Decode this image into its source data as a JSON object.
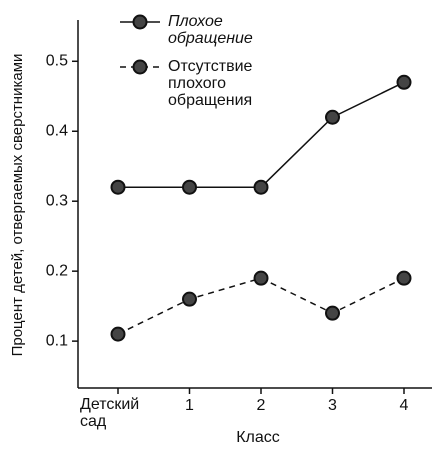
{
  "chart_data": {
    "type": "line",
    "x_label": "Класс",
    "y_label": "Процент детей, отвергаемых сверстниками",
    "categories": [
      "Детский сад",
      "1",
      "2",
      "3",
      "4"
    ],
    "series": [
      {
        "name": "Плохое обращение",
        "color": "#111111",
        "line_style": "solid",
        "values": [
          0.32,
          0.32,
          0.32,
          0.42,
          0.47
        ]
      },
      {
        "name": "Отсутствие плохого обращения",
        "color": "#111111",
        "line_style": "dashed",
        "values": [
          0.11,
          0.16,
          0.19,
          0.14,
          0.19
        ]
      }
    ],
    "ylim": [
      0.033,
      0.559
    ],
    "yticks": [
      0.1,
      0.2,
      0.3,
      0.4,
      0.5
    ],
    "grid": false,
    "legend": "top"
  }
}
